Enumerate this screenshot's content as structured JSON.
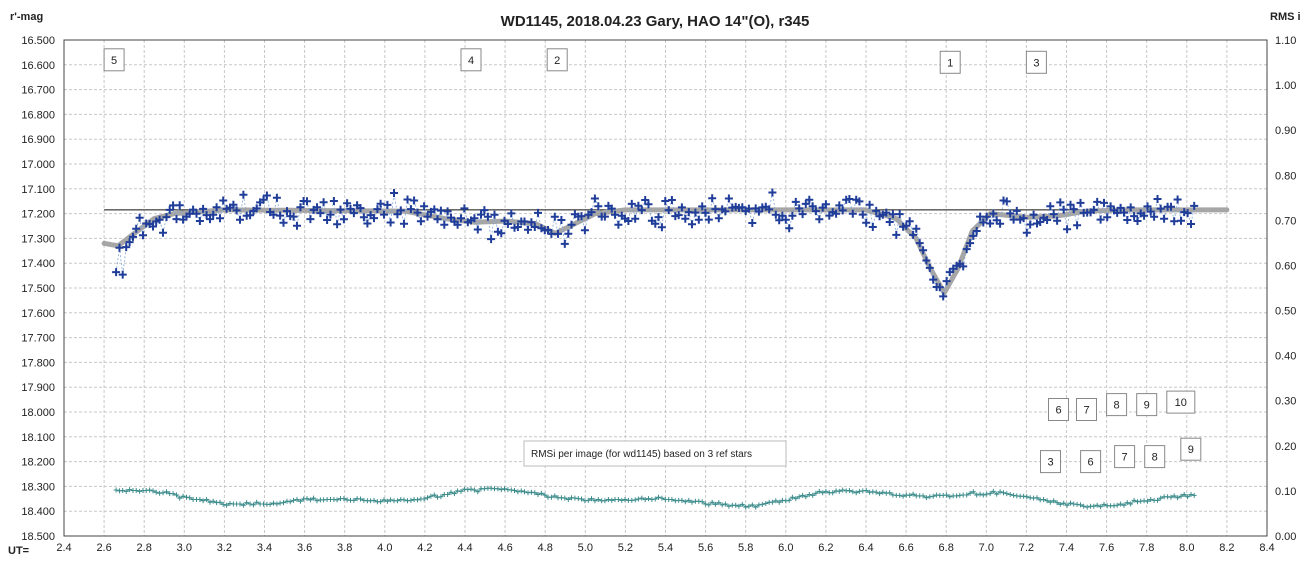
{
  "chart_data": {
    "type": "scatter",
    "title": "WD1145,  2018.04.23  Gary, HAO  14\"(O), r345",
    "ylabel": "r'-mag",
    "y2label": "RMS i",
    "xlabel": "UT=",
    "xlim": [
      2.4,
      8.4
    ],
    "ylim": [
      16.5,
      18.5
    ],
    "y_reversed": true,
    "y2lim": [
      0.0,
      1.1
    ],
    "grid": true,
    "x_ticks": [
      "2.4",
      "2.6",
      "2.8",
      "3.0",
      "3.2",
      "3.4",
      "3.6",
      "3.8",
      "4.0",
      "4.2",
      "4.4",
      "4.6",
      "4.8",
      "5.0",
      "5.2",
      "5.4",
      "5.6",
      "5.8",
      "6.0",
      "6.2",
      "6.4",
      "6.6",
      "6.8",
      "7.0",
      "7.2",
      "7.4",
      "7.6",
      "7.8",
      "8.0",
      "8.2",
      "8.4"
    ],
    "y_ticks": [
      "16.500",
      "16.600",
      "16.700",
      "16.800",
      "16.900",
      "17.000",
      "17.100",
      "17.200",
      "17.300",
      "17.400",
      "17.500",
      "17.600",
      "17.700",
      "17.800",
      "17.900",
      "18.000",
      "18.100",
      "18.200",
      "18.300",
      "18.400",
      "18.500"
    ],
    "y2_ticks": [
      "1.10",
      "1.00",
      "0.90",
      "0.80",
      "0.70",
      "0.60",
      "0.50",
      "0.40",
      "0.30",
      "0.20",
      "0.10",
      "0.00"
    ],
    "baseline_mag": 17.185,
    "model_curve": [
      [
        2.6,
        17.32
      ],
      [
        2.67,
        17.33
      ],
      [
        2.75,
        17.28
      ],
      [
        2.85,
        17.22
      ],
      [
        2.95,
        17.2
      ],
      [
        3.2,
        17.185
      ],
      [
        4.1,
        17.19
      ],
      [
        4.3,
        17.22
      ],
      [
        4.45,
        17.235
      ],
      [
        4.6,
        17.23
      ],
      [
        4.75,
        17.24
      ],
      [
        4.85,
        17.28
      ],
      [
        4.95,
        17.24
      ],
      [
        5.05,
        17.2
      ],
      [
        5.2,
        17.185
      ],
      [
        6.4,
        17.185
      ],
      [
        6.55,
        17.22
      ],
      [
        6.65,
        17.3
      ],
      [
        6.72,
        17.42
      ],
      [
        6.79,
        17.52
      ],
      [
        6.86,
        17.42
      ],
      [
        6.93,
        17.27
      ],
      [
        7.02,
        17.2
      ],
      [
        7.2,
        17.215
      ],
      [
        7.35,
        17.21
      ],
      [
        7.5,
        17.19
      ],
      [
        7.7,
        17.185
      ],
      [
        8.2,
        17.185
      ]
    ],
    "series": [
      {
        "name": "WD1145 r'-mag",
        "x": [],
        "y": []
      },
      {
        "name": "RMSi per image",
        "x": [],
        "y": []
      }
    ],
    "dip_labels": [
      {
        "text": "5",
        "x": 2.65,
        "mag": 16.58
      },
      {
        "text": "4",
        "x": 4.43,
        "mag": 16.58
      },
      {
        "text": "2",
        "x": 4.86,
        "mag": 16.58
      },
      {
        "text": "1",
        "x": 6.82,
        "mag": 16.59
      },
      {
        "text": "3",
        "x": 7.25,
        "mag": 16.59
      },
      {
        "text": "6",
        "x": 7.36,
        "mag": 17.99
      },
      {
        "text": "7",
        "x": 7.5,
        "mag": 17.99
      },
      {
        "text": "8",
        "x": 7.65,
        "mag": 17.97
      },
      {
        "text": "9",
        "x": 7.8,
        "mag": 17.97
      },
      {
        "text": "10",
        "x": 7.97,
        "mag": 17.96
      },
      {
        "text": "3",
        "x": 7.32,
        "mag": 18.2
      },
      {
        "text": "6",
        "x": 7.52,
        "mag": 18.2
      },
      {
        "text": "7",
        "x": 7.69,
        "mag": 18.18
      },
      {
        "text": "8",
        "x": 7.84,
        "mag": 18.18
      },
      {
        "text": "9",
        "x": 8.02,
        "mag": 18.15
      }
    ],
    "annotation": "RMSi per image (for wd1145) based on 3 ref stars",
    "colors": {
      "points": "#1f3d99",
      "points_line": "#7fa6d9",
      "model": "#a6a6a6",
      "rms": "#3d8c8c",
      "grid": "#c8c8c8",
      "baseline": "#111111"
    }
  }
}
